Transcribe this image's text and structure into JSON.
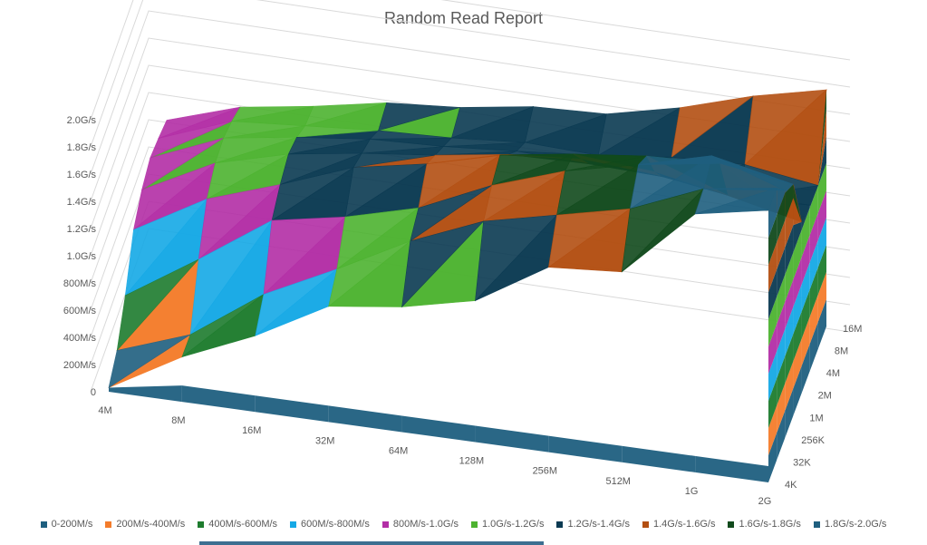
{
  "chart_data": {
    "type": "surface",
    "title": "Random Read Report",
    "x_categories": [
      "4M",
      "8M",
      "16M",
      "32M",
      "64M",
      "128M",
      "256M",
      "512M",
      "1G",
      "2G"
    ],
    "depth_categories": [
      "4K",
      "32K",
      "256K",
      "1M",
      "2M",
      "4M",
      "8M",
      "16M"
    ],
    "z_ticks": [
      "0",
      "200M/s",
      "400M/s",
      "600M/s",
      "800M/s",
      "1.0G/s",
      "1.2G/s",
      "1.4G/s",
      "1.6G/s",
      "1.8G/s",
      "2.0G/s"
    ],
    "z_range_mb_s": [
      0,
      2000
    ],
    "bands": [
      {
        "name": "0-200M/s",
        "color": "#1f5f7f"
      },
      {
        "name": "200M/s-400M/s",
        "color": "#f47c2b"
      },
      {
        "name": "400M/s-600M/s",
        "color": "#1e7c2e"
      },
      {
        "name": "600M/s-800M/s",
        "color": "#15a9e6"
      },
      {
        "name": "800M/s-1.0G/s",
        "color": "#b32ea6"
      },
      {
        "name": "1.0G/s-1.2G/s",
        "color": "#4db330"
      },
      {
        "name": "1.2G/s-1.4G/s",
        "color": "#0b3a52"
      },
      {
        "name": "1.4G/s-1.6G/s",
        "color": "#b34f12"
      },
      {
        "name": "1.6G/s-1.8G/s",
        "color": "#114a1c"
      },
      {
        "name": "1.8G/s-2.0G/s",
        "color": "#1f5f7f"
      }
    ],
    "values_mb_s": [
      [
        30,
        330,
        560,
        850,
        920,
        1040,
        1360,
        1400,
        1900,
        2000
      ],
      [
        140,
        330,
        700,
        960,
        1240,
        1460,
        1580,
        1700,
        1920,
        2000
      ],
      [
        380,
        720,
        1080,
        1180,
        1320,
        1560,
        1740,
        1860,
        2000,
        1820
      ],
      [
        700,
        1000,
        1180,
        1380,
        1480,
        1620,
        1700,
        1760,
        1780,
        1700
      ],
      [
        830,
        1100,
        1240,
        1320,
        1380,
        1460,
        1500,
        1480,
        1380,
        1260
      ],
      [
        900,
        1120,
        1200,
        1260,
        1280,
        1320,
        1300,
        1280,
        1200,
        1220
      ],
      [
        880,
        1080,
        1120,
        1160,
        1180,
        1220,
        1200,
        1260,
        1280,
        1200
      ],
      [
        850,
        1020,
        1100,
        1200,
        1240,
        1320,
        1340,
        1460,
        1620,
        1740
      ]
    ],
    "legend_position": "bottom"
  }
}
